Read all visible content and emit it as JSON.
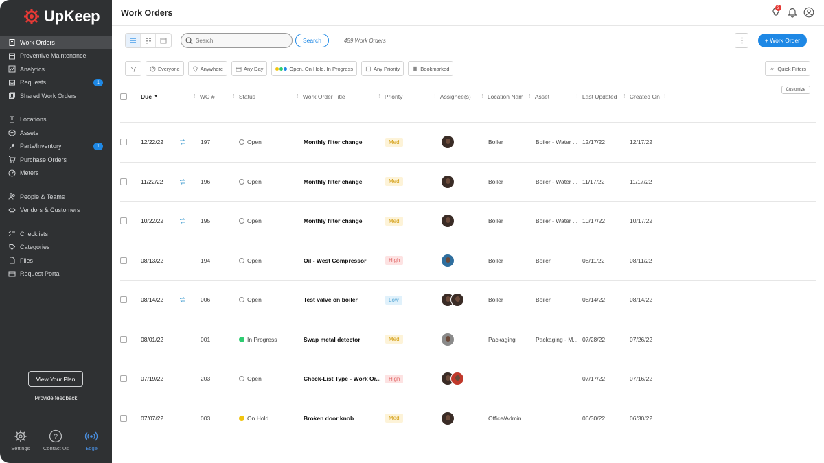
{
  "app": {
    "brand": "UpKeep",
    "page_title": "Work Orders",
    "notification_count": "3"
  },
  "sidebar": {
    "items": [
      {
        "label": "Work Orders",
        "icon": "clipboard-icon",
        "active": true
      },
      {
        "label": "Preventive Maintenance",
        "icon": "calendar-icon"
      },
      {
        "label": "Analytics",
        "icon": "chart-icon"
      },
      {
        "label": "Requests",
        "icon": "inbox-icon",
        "badge": "1"
      },
      {
        "label": "Shared Work Orders",
        "icon": "share-icon"
      },
      {
        "label": "Locations",
        "icon": "building-icon"
      },
      {
        "label": "Assets",
        "icon": "cube-icon"
      },
      {
        "label": "Parts/Inventory",
        "icon": "wrench-icon",
        "badge": "1"
      },
      {
        "label": "Purchase Orders",
        "icon": "cart-icon"
      },
      {
        "label": "Meters",
        "icon": "gauge-icon"
      },
      {
        "label": "People & Teams",
        "icon": "people-icon"
      },
      {
        "label": "Vendors & Customers",
        "icon": "handshake-icon"
      },
      {
        "label": "Checklists",
        "icon": "checklist-icon"
      },
      {
        "label": "Categories",
        "icon": "tag-icon"
      },
      {
        "label": "Files",
        "icon": "file-icon"
      },
      {
        "label": "Request Portal",
        "icon": "portal-icon"
      }
    ],
    "plan_button": "View Your Plan",
    "feedback": "Provide feedback",
    "tools": [
      {
        "label": "Settings",
        "icon": "gear-icon"
      },
      {
        "label": "Contact Us",
        "icon": "help-icon"
      },
      {
        "label": "Edge",
        "icon": "edge-signal-icon"
      }
    ]
  },
  "toolbar": {
    "search_placeholder": "Search",
    "search_button": "Search",
    "wo_count": "459 Work Orders",
    "new_button": "+ Work Order"
  },
  "filters": {
    "everyone": "Everyone",
    "anywhere": "Anywhere",
    "any_day": "Any Day",
    "status": "Open, On Hold, In Progress",
    "any_priority": "Any Priority",
    "bookmarked": "Bookmarked",
    "quick_filters": "Quick Filters",
    "customize": "Customize"
  },
  "table": {
    "columns": [
      "Due",
      "WO #",
      "Status",
      "Work Order Title",
      "Priority",
      "Assignee(s)",
      "Location Nam",
      "Asset",
      "Last Updated",
      "Created On"
    ],
    "rows": [
      {
        "due": "12/22/22",
        "repeat": true,
        "wo": "197",
        "status": "Open",
        "title": "Monthly filter change",
        "priority": "Med",
        "assignees": 1,
        "location": "Boiler",
        "asset": "Boiler - Water ...",
        "updated": "12/17/22",
        "created": "12/17/22"
      },
      {
        "due": "11/22/22",
        "repeat": true,
        "wo": "196",
        "status": "Open",
        "title": "Monthly filter change",
        "priority": "Med",
        "assignees": 1,
        "location": "Boiler",
        "asset": "Boiler - Water ...",
        "updated": "11/17/22",
        "created": "11/17/22"
      },
      {
        "due": "10/22/22",
        "repeat": true,
        "wo": "195",
        "status": "Open",
        "title": "Monthly filter change",
        "priority": "Med",
        "assignees": 1,
        "location": "Boiler",
        "asset": "Boiler - Water ...",
        "updated": "10/17/22",
        "created": "10/17/22"
      },
      {
        "due": "08/13/22",
        "repeat": false,
        "wo": "194",
        "status": "Open",
        "title": "Oil - West Compressor",
        "priority": "High",
        "assignees": 1,
        "location": "Boiler",
        "asset": "Boiler",
        "updated": "08/11/22",
        "created": "08/11/22"
      },
      {
        "due": "08/14/22",
        "repeat": true,
        "wo": "006",
        "status": "Open",
        "title": "Test valve on boiler",
        "priority": "Low",
        "assignees": 2,
        "location": "Boiler",
        "asset": "Boiler",
        "updated": "08/14/22",
        "created": "08/14/22"
      },
      {
        "due": "08/01/22",
        "repeat": false,
        "wo": "001",
        "status": "In Progress",
        "title": "Swap metal detector",
        "priority": "Med",
        "assignees": 1,
        "location": "Packaging",
        "asset": "Packaging - M...",
        "updated": "07/28/22",
        "created": "07/26/22"
      },
      {
        "due": "07/19/22",
        "repeat": false,
        "wo": "203",
        "status": "Open",
        "title": "Check-List Type - Work Or...",
        "priority": "High",
        "assignees": 2,
        "location": "",
        "asset": "",
        "updated": "07/17/22",
        "created": "07/16/22"
      },
      {
        "due": "07/07/22",
        "repeat": false,
        "wo": "003",
        "status": "On Hold",
        "title": "Broken door knob",
        "priority": "Med",
        "assignees": 1,
        "location": "Office/Admin...",
        "asset": "",
        "updated": "06/30/22",
        "created": "06/30/22"
      }
    ]
  },
  "colors": {
    "accent": "#1e88e5",
    "sidebar_bg": "#2f3133",
    "med": {
      "bg": "#fdf3d8",
      "fg": "#d4a017"
    },
    "high": {
      "bg": "#fde2e2",
      "fg": "#e06666"
    },
    "low": {
      "bg": "#e0f1fb",
      "fg": "#5aa9d6"
    },
    "in_progress": "#2ecc71",
    "on_hold": "#f1c40f"
  }
}
